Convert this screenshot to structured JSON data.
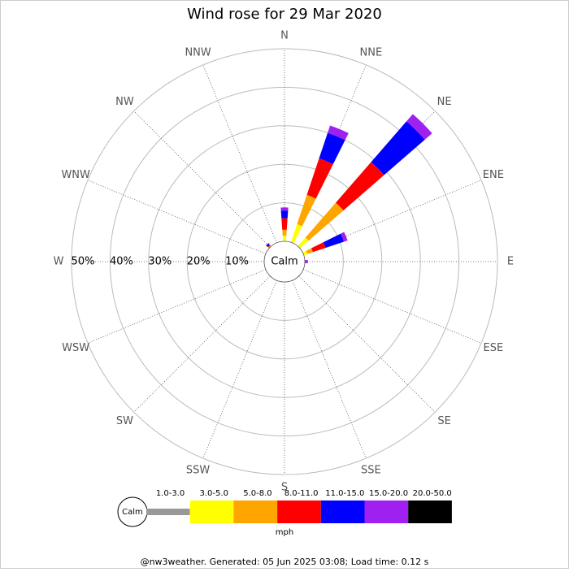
{
  "chart_data": {
    "type": "windrose",
    "title": "Wind rose for 29 Mar 2020",
    "center_label": "Calm",
    "unit": "mph",
    "categories": [
      "N",
      "NNE",
      "NE",
      "ENE",
      "E",
      "ESE",
      "SE",
      "SSE",
      "S",
      "SSW",
      "SW",
      "WSW",
      "W",
      "WNW",
      "NW",
      "NNW"
    ],
    "rlim": [
      0,
      50
    ],
    "rticks": [
      {
        "value": 10,
        "label": "10%"
      },
      {
        "value": 20,
        "label": "20%"
      },
      {
        "value": 30,
        "label": "30%"
      },
      {
        "value": 40,
        "label": "40%"
      },
      {
        "value": 50,
        "label": "50%"
      }
    ],
    "series": [
      {
        "name": "1.0-3.0",
        "color": "#999999",
        "values": [
          0,
          0,
          0,
          0,
          0,
          0,
          0,
          0,
          0,
          0,
          0,
          0,
          0,
          0,
          0,
          0
        ]
      },
      {
        "name": "3.0-5.0",
        "color": "#ffff00",
        "values": [
          1.5,
          5,
          3,
          1,
          0,
          0,
          0,
          0,
          0,
          0,
          0,
          0,
          0,
          0,
          0,
          0
        ]
      },
      {
        "name": "5.0-8.0",
        "color": "#ffa500",
        "values": [
          1.5,
          8,
          12,
          1.5,
          0,
          0,
          0,
          0,
          0,
          0,
          0,
          0,
          0,
          0,
          0.3,
          0
        ]
      },
      {
        "name": "8.0-11.0",
        "color": "#ff0000",
        "values": [
          3,
          10,
          14,
          3.5,
          0,
          0,
          0,
          0,
          0,
          0,
          0,
          0,
          0,
          0,
          0.3,
          0
        ]
      },
      {
        "name": "11.0-15.0",
        "color": "#0000ff",
        "values": [
          2,
          7,
          14,
          5,
          0,
          0,
          0,
          0,
          0,
          0,
          0,
          0,
          0,
          0,
          0.5,
          0
        ]
      },
      {
        "name": "15.0-20.0",
        "color": "#a020f0",
        "values": [
          0.8,
          2,
          2.5,
          1,
          0.8,
          0,
          0,
          0,
          0,
          0,
          0,
          0,
          0,
          0,
          0,
          0
        ]
      },
      {
        "name": "20.0-50.0",
        "color": "#000000",
        "values": [
          0,
          0,
          0,
          0,
          0,
          0,
          0,
          0,
          0,
          0,
          0,
          0,
          0,
          0,
          0,
          0
        ]
      }
    ]
  },
  "footer": "@nw3weather. Generated: 05 Jun 2025 03:08; Load time: 0.12 s"
}
